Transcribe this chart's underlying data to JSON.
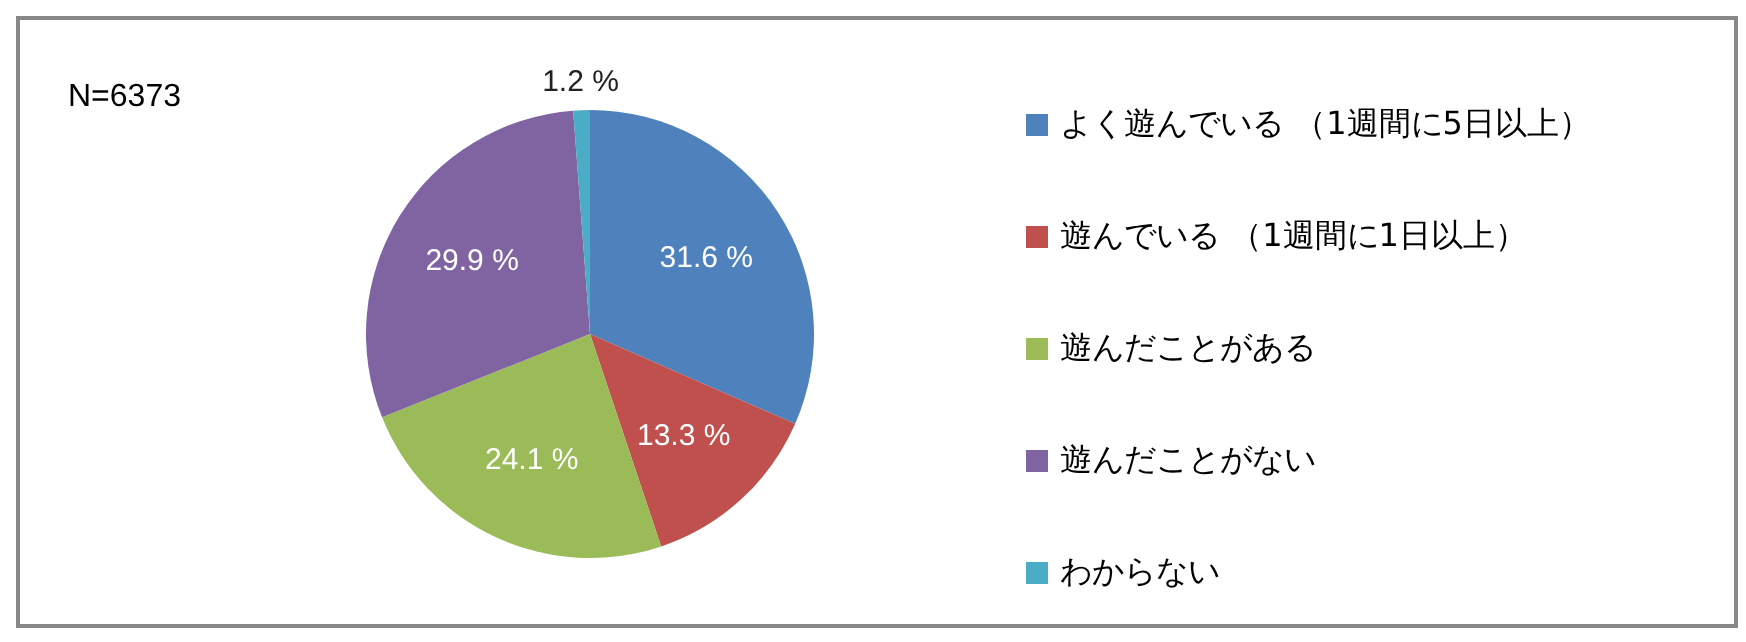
{
  "chart_data": {
    "type": "pie",
    "categories": [
      "よく遊んでいる （1週間に5日以上）",
      "遊んでいる （1週間に1日以上）",
      "遊んだことがある",
      "遊んだことがない",
      "わからない"
    ],
    "values": [
      31.6,
      13.3,
      24.1,
      29.9,
      1.2
    ],
    "colors": [
      "#4f81bd",
      "#c0504d",
      "#9bbb59",
      "#8064a2",
      "#4bacc6"
    ],
    "value_labels": [
      "31.6 %",
      "13.3 %",
      "24.1 %",
      "29.9 %",
      "1.2 %"
    ],
    "legend": "right",
    "annotations": [
      "N=6373"
    ]
  }
}
